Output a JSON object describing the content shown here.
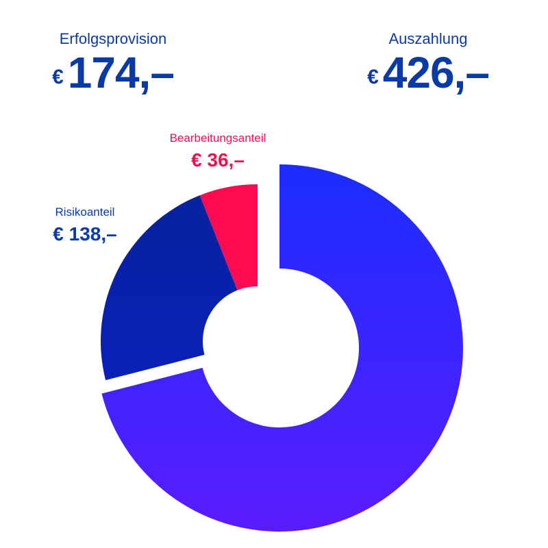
{
  "summary": {
    "left": {
      "label": "Erfolgsprovision",
      "currency": "€",
      "amount": "174,–"
    },
    "right": {
      "label": "Auszahlung",
      "currency": "€",
      "amount": "426,–"
    }
  },
  "chart_data": {
    "type": "pie",
    "variant": "donut",
    "categories": [
      "Auszahlung",
      "Risikoanteil",
      "Bearbeitungsanteil"
    ],
    "values": [
      426,
      138,
      36
    ],
    "slice_labels": [
      {
        "name": "",
        "value": ""
      },
      {
        "name": "Risikoanteil",
        "value": "€ 138,–"
      },
      {
        "name": "Bearbeitungsanteil",
        "value": "€ 36,–"
      }
    ],
    "colors": [
      "#3a26ff",
      "#0a20b4",
      "#ff0a50"
    ]
  }
}
